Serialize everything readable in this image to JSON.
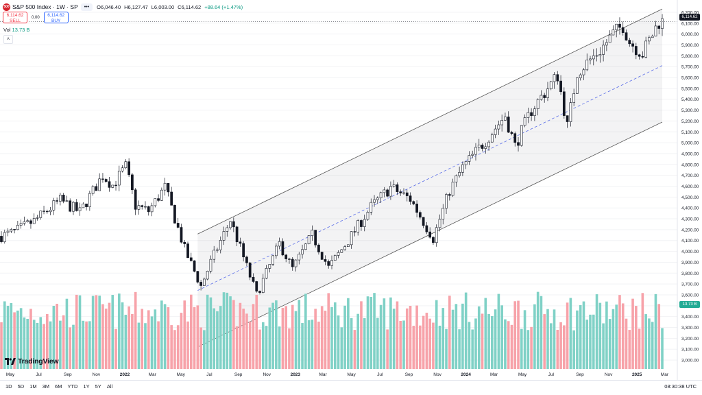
{
  "header": {
    "symbol_icon": "500",
    "symbol": "S&P 500 Index · 1W · SP",
    "more_label": "•••",
    "open": "O6,046.40",
    "high": "H6,127.47",
    "low": "L6,003.00",
    "close": "C6,114.62",
    "change": "+88.64 (+1.47%)"
  },
  "trade": {
    "sell_price": "6,114.62",
    "sell_label": "SELL",
    "spread": "0.00",
    "buy_price": "6,114.62",
    "buy_label": "BUY"
  },
  "volume": {
    "label": "Vol",
    "value": "13.73 B"
  },
  "collapse_icon": "chevron-up-icon",
  "price_axis": {
    "ticks": [
      "6,200.00",
      "6,100.00",
      "6,000.00",
      "5,900.00",
      "5,800.00",
      "5,700.00",
      "5,600.00",
      "5,500.00",
      "5,400.00",
      "5,300.00",
      "5,200.00",
      "5,100.00",
      "5,000.00",
      "4,900.00",
      "4,800.00",
      "4,700.00",
      "4,600.00",
      "4,500.00",
      "4,400.00",
      "4,300.00",
      "4,200.00",
      "4,100.00",
      "4,000.00",
      "3,900.00",
      "3,800.00",
      "3,700.00",
      "3,600.00",
      "3,500.00",
      "3,400.00",
      "3,300.00",
      "3,200.00",
      "3,100.00",
      "3,000.00"
    ],
    "last_price": "6,114.62",
    "volume_tag": "13.73 B"
  },
  "time_axis": {
    "labels": [
      "May",
      "Jul",
      "Sep",
      "Nov",
      "2022",
      "Mar",
      "May",
      "Jul",
      "Sep",
      "Nov",
      "2023",
      "Mar",
      "May",
      "Jul",
      "Sep",
      "Nov",
      "2024",
      "Mar",
      "May",
      "Jul",
      "Sep",
      "Nov",
      "2025",
      "Mar"
    ]
  },
  "timeframes": [
    "1D",
    "5D",
    "1M",
    "3M",
    "6M",
    "YTD",
    "1Y",
    "5Y",
    "All"
  ],
  "clock": "08:30:38 UTC",
  "logo": "TradingView",
  "colors": {
    "up": "#089981",
    "down": "#f23645",
    "vol_up": "#7fd1c6",
    "vol_down": "#f7a2a9",
    "channel": "#787b86",
    "mid": "#5b6ee8"
  },
  "chart_data": {
    "type": "candlestick",
    "interval": "1W",
    "x_range": [
      "2021-04-12",
      "2025-02-24"
    ],
    "ylim": [
      2950,
      6250
    ],
    "anchors": [
      {
        "date": "2021-04-12",
        "close": 4140
      },
      {
        "date": "2021-05-10",
        "close": 4180
      },
      {
        "date": "2021-06-21",
        "close": 4280
      },
      {
        "date": "2021-08-16",
        "close": 4470
      },
      {
        "date": "2021-09-27",
        "close": 4360
      },
      {
        "date": "2021-11-15",
        "close": 4700
      },
      {
        "date": "2021-12-06",
        "close": 4610
      },
      {
        "date": "2022-01-03",
        "close": 4780
      },
      {
        "date": "2022-01-24",
        "close": 4420
      },
      {
        "date": "2022-02-21",
        "close": 4370
      },
      {
        "date": "2022-03-28",
        "close": 4590
      },
      {
        "date": "2022-05-09",
        "close": 4020
      },
      {
        "date": "2022-06-13",
        "close": 3680
      },
      {
        "date": "2022-07-04",
        "close": 3900
      },
      {
        "date": "2022-08-15",
        "close": 4290
      },
      {
        "date": "2022-10-10",
        "close": 3600
      },
      {
        "date": "2022-11-28",
        "close": 4070
      },
      {
        "date": "2022-12-26",
        "close": 3840
      },
      {
        "date": "2023-02-06",
        "close": 4150
      },
      {
        "date": "2023-03-13",
        "close": 3850
      },
      {
        "date": "2023-04-24",
        "close": 4100
      },
      {
        "date": "2023-06-12",
        "close": 4410
      },
      {
        "date": "2023-07-24",
        "close": 4590
      },
      {
        "date": "2023-09-04",
        "close": 4480
      },
      {
        "date": "2023-10-23",
        "close": 4120
      },
      {
        "date": "2023-11-27",
        "close": 4560
      },
      {
        "date": "2023-12-25",
        "close": 4770
      },
      {
        "date": "2024-02-12",
        "close": 5020
      },
      {
        "date": "2024-03-25",
        "close": 5250
      },
      {
        "date": "2024-04-15",
        "close": 4970
      },
      {
        "date": "2024-05-20",
        "close": 5300
      },
      {
        "date": "2024-07-15",
        "close": 5620
      },
      {
        "date": "2024-08-05",
        "close": 5150
      },
      {
        "date": "2024-08-26",
        "close": 5650
      },
      {
        "date": "2024-10-14",
        "close": 5850
      },
      {
        "date": "2024-11-11",
        "close": 6000
      },
      {
        "date": "2024-12-02",
        "close": 6080
      },
      {
        "date": "2024-12-16",
        "close": 5930
      },
      {
        "date": "2025-01-13",
        "close": 5820
      },
      {
        "date": "2025-02-17",
        "close": 6114
      }
    ],
    "channel": {
      "upper": [
        {
          "date": "2022-06-06",
          "price": 4160
        },
        {
          "date": "2025-02-24",
          "price": 6230
        }
      ],
      "lower": [
        {
          "date": "2022-06-06",
          "price": 3120
        },
        {
          "date": "2025-02-24",
          "price": 5190
        }
      ],
      "mid": [
        {
          "date": "2022-06-06",
          "price": 3640
        },
        {
          "date": "2025-02-24",
          "price": 5710
        }
      ]
    }
  }
}
